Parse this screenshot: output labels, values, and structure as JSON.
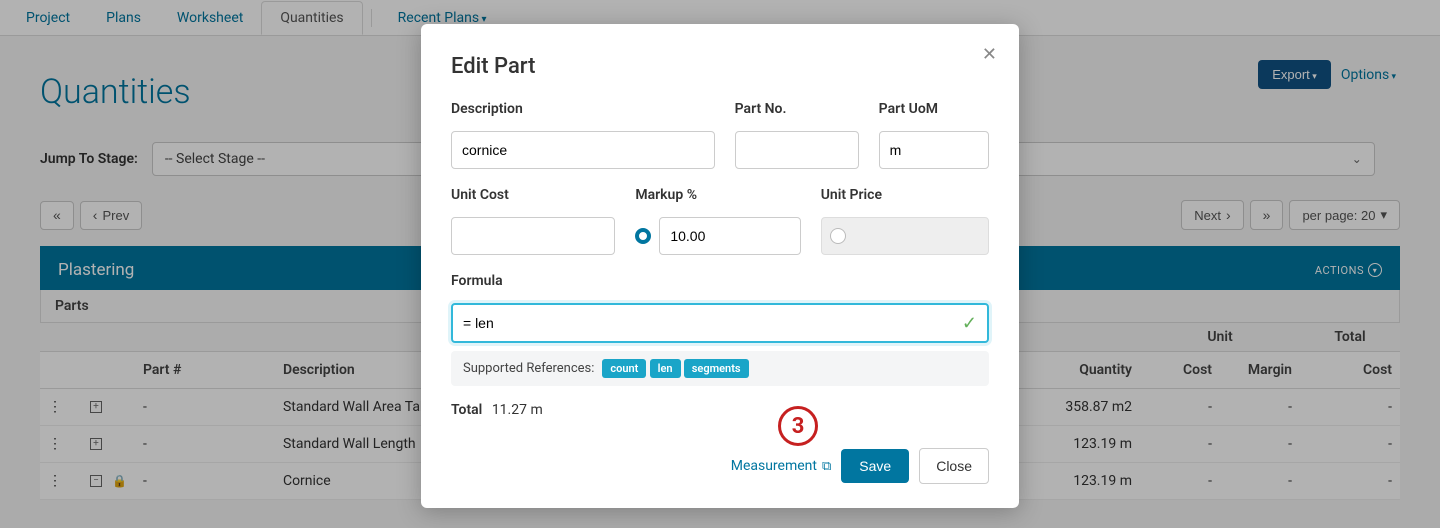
{
  "tabs": {
    "project": "Project",
    "plans": "Plans",
    "worksheet": "Worksheet",
    "quantities": "Quantities",
    "recent": "Recent Plans"
  },
  "page": {
    "title": "Quantities",
    "export": "Export",
    "options": "Options",
    "stage_label": "Jump To Stage:",
    "stage_placeholder": "-- Select Stage --",
    "prev": "Prev",
    "next": "Next",
    "per_page": "per page: 20"
  },
  "section": {
    "title": "Plastering",
    "actions": "ACTIONS",
    "parts": "Parts"
  },
  "table": {
    "headers": {
      "part_no": "Part #",
      "description": "Description",
      "quantity": "Quantity",
      "unit_group": "Unit",
      "cost": "Cost",
      "margin": "Margin",
      "total_group": "Total",
      "total_cost": "Cost"
    },
    "rows": [
      {
        "expand": "plus",
        "part_no": "-",
        "description": "Standard Wall Area Takeoff",
        "quantity": "358.87 m2",
        "unit_cost": "-",
        "margin": "-",
        "total_cost": "-"
      },
      {
        "expand": "plus",
        "part_no": "-",
        "description": "Standard Wall Length",
        "quantity": "123.19 m",
        "unit_cost": "-",
        "margin": "-",
        "total_cost": "-"
      },
      {
        "expand": "minus-lock",
        "part_no": "-",
        "description": "Cornice",
        "quantity": "123.19 m",
        "unit_cost": "-",
        "margin": "-",
        "total_cost": "-"
      }
    ]
  },
  "modal": {
    "title": "Edit Part",
    "labels": {
      "description": "Description",
      "part_no": "Part No.",
      "part_uom": "Part UoM",
      "unit_cost": "Unit Cost",
      "markup": "Markup %",
      "unit_price": "Unit Price",
      "formula": "Formula"
    },
    "values": {
      "description": "cornice",
      "part_no": "",
      "part_uom": "m",
      "unit_cost": "",
      "markup": "10.00",
      "formula": "= len"
    },
    "supported_label": "Supported References:",
    "refs": [
      "count",
      "len",
      "segments"
    ],
    "total_label": "Total",
    "total_value": "11.27 m",
    "measurement": "Measurement",
    "save": "Save",
    "close": "Close"
  },
  "callout": "3"
}
